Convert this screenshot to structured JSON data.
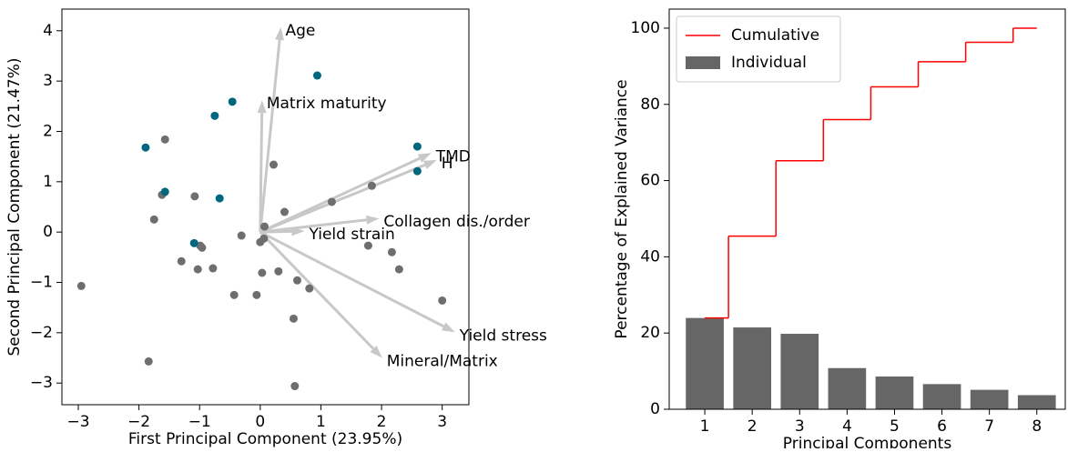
{
  "chart_data": [
    {
      "type": "biplot",
      "xlabel": "First Principal Component (23.95%)",
      "ylabel": "Second Principal Component (21.47%)",
      "xlim": [
        -3.27,
        3.44
      ],
      "ylim": [
        -3.43,
        4.43
      ],
      "xticks": [
        {
          "value": -3,
          "label": "−3"
        },
        {
          "value": -2,
          "label": "−2"
        },
        {
          "value": -1,
          "label": "−1"
        },
        0,
        1,
        2,
        3
      ],
      "yticks": [
        {
          "value": -3,
          "label": "−3"
        },
        {
          "value": -2,
          "label": "−2"
        },
        {
          "value": -1,
          "label": "−1"
        },
        0,
        1,
        2,
        3,
        4
      ],
      "series": [
        {
          "color": "#6e6e6e",
          "x": [
            -1.57,
            0.22,
            -1.62,
            -1.08,
            1.84,
            1.18,
            0.4,
            -1.75,
            0.07,
            -0.31,
            0.06,
            0,
            -0.99,
            -0.96,
            1.78,
            2.17,
            -1.3,
            -0.78,
            -1.03,
            0.3,
            0.03,
            2.29,
            0.61,
            0.81,
            -0.43,
            -0.06,
            3.0,
            -2.95,
            0.55,
            -1.84,
            0.57
          ],
          "y": [
            1.84,
            1.34,
            0.74,
            0.71,
            0.92,
            0.6,
            0.4,
            0.25,
            0.11,
            -0.07,
            -0.13,
            -0.2,
            -0.27,
            -0.31,
            -0.27,
            -0.4,
            -0.58,
            -0.72,
            -0.74,
            -0.78,
            -0.81,
            -0.74,
            -0.96,
            -1.12,
            -1.25,
            -1.25,
            -1.36,
            -1.07,
            -1.72,
            -2.57,
            -3.06
          ]
        },
        {
          "color": "#00677f",
          "x": [
            0.94,
            -0.46,
            -0.75,
            -1.89,
            2.59,
            2.59,
            -1.57,
            -0.67,
            -1.09
          ],
          "y": [
            3.11,
            2.59,
            2.31,
            1.68,
            1.7,
            1.21,
            0.8,
            0.67,
            -0.22
          ]
        }
      ],
      "arrow_color": "#c8c8c8",
      "arrows": [
        {
          "label": "Age",
          "x": 0.34,
          "y": 4.07
        },
        {
          "label": "Matrix maturity",
          "x": 0.03,
          "y": 2.62
        },
        {
          "label": "TMD",
          "x": 2.82,
          "y": 1.57
        },
        {
          "label": "H",
          "x": 2.91,
          "y": 1.43
        },
        {
          "label": "Collagen dis./order",
          "x": 1.96,
          "y": 0.27
        },
        {
          "label": "Yield strain",
          "x": 0.73,
          "y": 0.02
        },
        {
          "label": "Yield stress",
          "x": 3.21,
          "y": -1.99
        },
        {
          "label": "Mineral/Matrix",
          "x": 2.01,
          "y": -2.5
        }
      ]
    },
    {
      "type": "pareto",
      "xlabel": "Principal Components",
      "ylabel": "Percentage of Explained Variance",
      "x": [
        1,
        2,
        3,
        4,
        5,
        6,
        7,
        8
      ],
      "xlim": [
        0.25,
        8.6
      ],
      "ylim": [
        0,
        105
      ],
      "xticks": [
        1,
        2,
        3,
        4,
        5,
        6,
        7,
        8
      ],
      "yticks": [
        0,
        20,
        40,
        60,
        80,
        100
      ],
      "legend": "upper left",
      "series": [
        {
          "name": "Cumulative",
          "type": "step",
          "color": "#ff0000",
          "values": [
            23.95,
            45.42,
            65.2,
            76.0,
            84.6,
            91.2,
            96.3,
            100
          ]
        },
        {
          "name": "Individual",
          "type": "bar",
          "color": "#666666",
          "values": [
            23.95,
            21.47,
            19.8,
            10.8,
            8.6,
            6.6,
            5.1,
            3.7
          ]
        }
      ]
    }
  ]
}
